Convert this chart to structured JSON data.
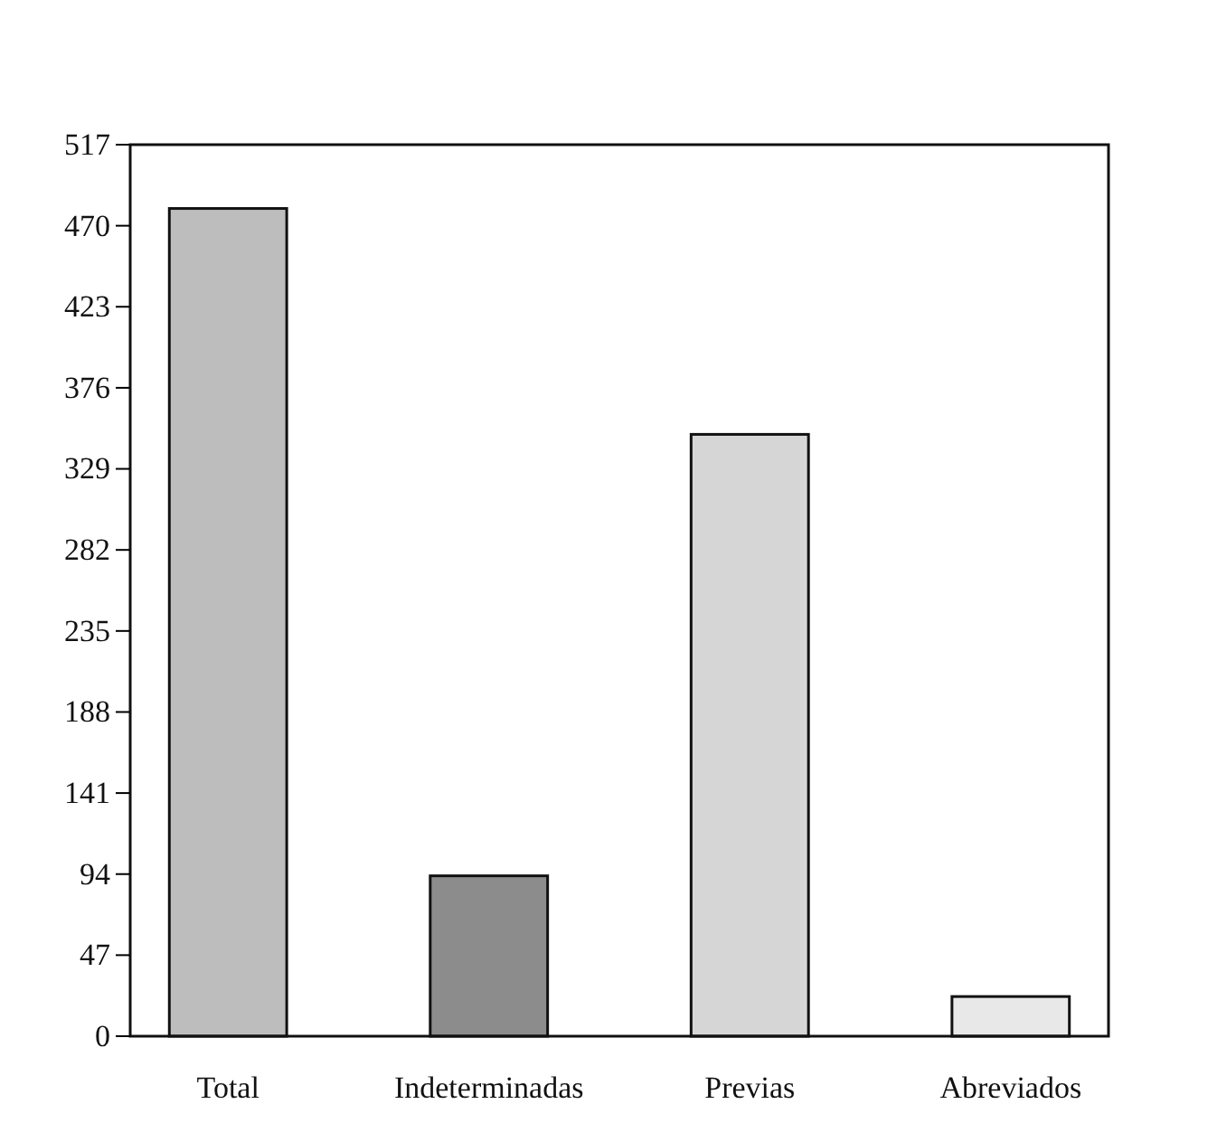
{
  "chart_data": {
    "type": "bar",
    "categories": [
      "Total",
      "Indeterminadas",
      "Previas",
      "Abreviados"
    ],
    "values": [
      480,
      93,
      349,
      23
    ],
    "colors": [
      "#bdbdbd",
      "#8c8c8c",
      "#d6d6d6",
      "#e8e8e8"
    ],
    "ylim": [
      0,
      517
    ],
    "yticks": [
      0,
      47,
      94,
      141,
      188,
      235,
      282,
      329,
      376,
      423,
      470,
      517
    ],
    "grid": false
  }
}
